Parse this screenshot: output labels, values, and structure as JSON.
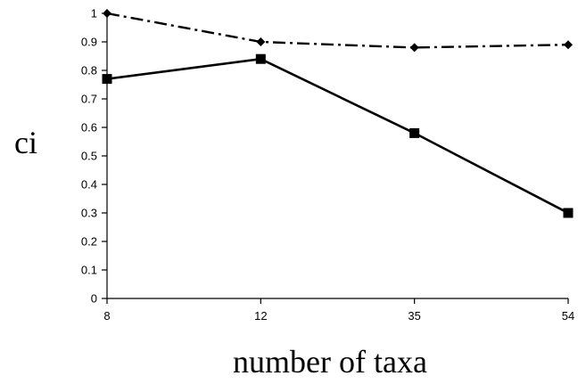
{
  "chart_data": {
    "type": "line",
    "title": "",
    "xlabel": "number of taxa",
    "ylabel": "ci",
    "categories": [
      "8",
      "12",
      "35",
      "54"
    ],
    "ylim": [
      0,
      1
    ],
    "yticks": [
      "0",
      "0.1",
      "0.2",
      "0.3",
      "0.4",
      "0.5",
      "0.6",
      "0.7",
      "0.8",
      "0.9",
      "1"
    ],
    "grid": false,
    "legend": "none",
    "series": [
      {
        "values": [
          1.0,
          0.9,
          0.88,
          0.89
        ],
        "line_style": "dash-dot",
        "marker": "diamond",
        "color": "#000000"
      },
      {
        "values": [
          0.77,
          0.84,
          0.58,
          0.3
        ],
        "line_style": "solid",
        "marker": "square",
        "color": "#000000"
      }
    ]
  }
}
